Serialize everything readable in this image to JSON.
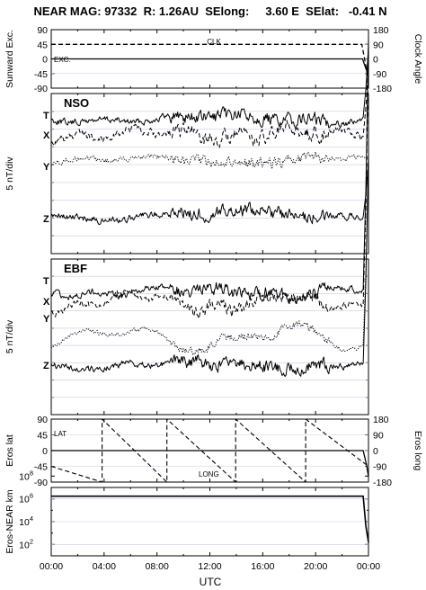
{
  "header": {
    "title": "NEAR MAG: 97332  R: 1.26AU  SElong:     3.60 E  SElat:   -0.41 N"
  },
  "x_axis": {
    "label": "UTC",
    "range_hours": [
      0,
      24
    ],
    "ticks": [
      "00:00",
      "04:00",
      "08:00",
      "12:00",
      "16:00",
      "20:00",
      "00:00"
    ]
  },
  "chart_data": [
    {
      "type": "line",
      "panel": "angles",
      "ylabel_left": "Sunward Exc.",
      "ylabel_right": "Clock Angle",
      "yticks_left": [
        "90",
        "45",
        "0",
        "-45",
        "-90"
      ],
      "yticks_right": [
        "180",
        "90",
        "0",
        "-90",
        "-180"
      ],
      "ylim": [
        -90,
        90
      ],
      "series": [
        {
          "name": "CLK",
          "style": "dashed",
          "hours": [
            0,
            23.5,
            23.75,
            24
          ],
          "values": [
            45,
            45,
            -10,
            -70
          ]
        },
        {
          "name": "EXC.",
          "style": "solid",
          "hours": [
            0,
            23.55,
            23.8,
            24
          ],
          "values": [
            0,
            0,
            -30,
            -50
          ]
        }
      ]
    },
    {
      "type": "line",
      "panel": "NSO",
      "title": "NSO",
      "ylabel": "5 nT/div",
      "series": [
        {
          "name": "T",
          "style": "solid"
        },
        {
          "name": "X",
          "style": "dashed"
        },
        {
          "name": "Y",
          "style": "dotted"
        },
        {
          "name": "Z",
          "style": "solid"
        }
      ]
    },
    {
      "type": "line",
      "panel": "EBF",
      "title": "EBF",
      "ylabel": "5 nT/div",
      "series": [
        {
          "name": "T",
          "style": "solid"
        },
        {
          "name": "X",
          "style": "dashed"
        },
        {
          "name": "Y",
          "style": "dotted"
        },
        {
          "name": "Z",
          "style": "solid"
        }
      ]
    },
    {
      "type": "line",
      "panel": "eros",
      "ylabel_left": "Eros lat",
      "ylabel_right": "Eros long",
      "yticks_left": [
        "90",
        "45",
        "0",
        "-45",
        "-90"
      ],
      "yticks_right": [
        "180",
        "90",
        "0",
        "-90",
        "-180"
      ],
      "ylim": [
        -90,
        90
      ],
      "series": [
        {
          "name": "LAT",
          "style": "solid",
          "hours": [
            0,
            23.6,
            23.85,
            24
          ],
          "values": [
            0,
            0,
            -40,
            -75
          ]
        },
        {
          "name": "LONG",
          "style": "dashed",
          "axis": "right",
          "hours": [
            0,
            3.85,
            3.85,
            8.75,
            8.75,
            13.95,
            13.95,
            19.25,
            19.25,
            24
          ],
          "values": [
            -90,
            -180,
            180,
            -180,
            180,
            -180,
            180,
            -180,
            180,
            -90
          ]
        }
      ]
    },
    {
      "type": "line",
      "panel": "distance",
      "ylabel": "Eros-NEAR km",
      "yscale": "log",
      "ylim": [
        10,
        10000000
      ],
      "yticks": [
        "10^8",
        "10^6",
        "10^4",
        "10^2"
      ],
      "series": [
        {
          "name": "distance",
          "style": "solid",
          "hours": [
            0,
            23.6,
            23.8,
            24
          ],
          "values": [
            1700000,
            1700000,
            4000,
            150
          ]
        }
      ]
    }
  ]
}
